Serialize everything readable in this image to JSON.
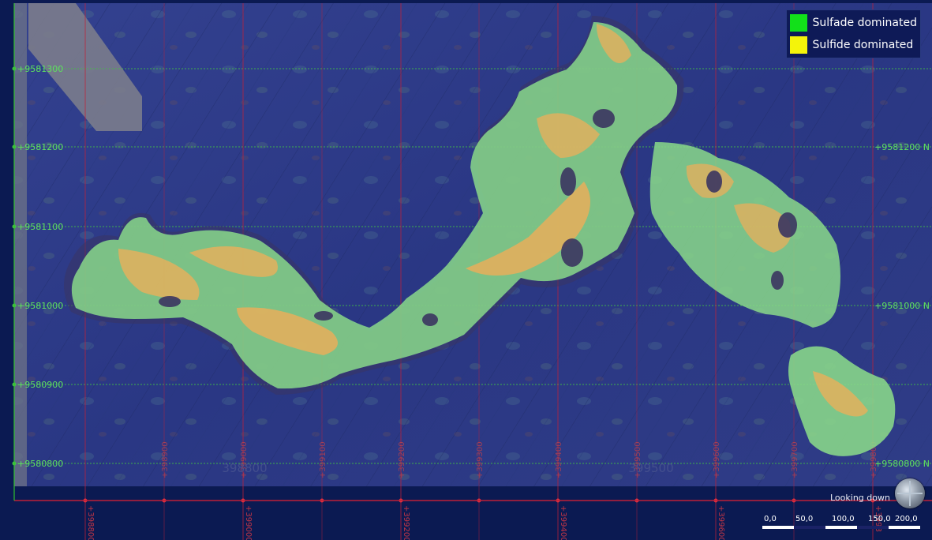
{
  "legend": {
    "items": [
      {
        "label": "Sulfade dominated",
        "color": "#12e01a"
      },
      {
        "label": "Sulfide dominated",
        "color": "#f4f40a"
      }
    ]
  },
  "grid": {
    "northings_left": [
      "+9581300",
      "+9581200",
      "+9581100",
      "+9581000",
      "+9580900",
      "+9580800"
    ],
    "northings_right": [
      "+9581200 N",
      "+9581000 N",
      "+9580800 N"
    ],
    "eastings_top": [
      "+398900",
      "+399000",
      "+399100",
      "+399200",
      "+399300",
      "+399400",
      "+399500",
      "+399600",
      "+399700",
      "+399800"
    ],
    "eastings_bottom": [
      "+398800 E",
      "+399000 E",
      "+399200 E",
      "+399400 E",
      "+399600 E",
      "+3998"
    ],
    "faint_labels": [
      "398800",
      "399500"
    ]
  },
  "view": {
    "label": "Looking down",
    "compass_icon": "compass-ball-icon"
  },
  "scale": {
    "labels": [
      "0,0",
      "50,0",
      "100,0",
      "150,0",
      "200,0"
    ]
  },
  "colors": {
    "background": "#2c3985",
    "frame": "#0b1a52",
    "green_grid": "#43c443",
    "red_grid": "#c02038",
    "body_green": "#8ad98a",
    "body_orange": "#f2ad57",
    "dark_zone": "#3b3560"
  }
}
